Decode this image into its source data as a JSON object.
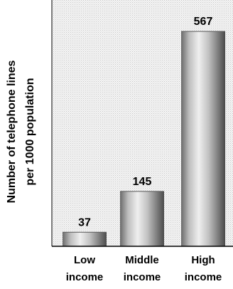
{
  "chart_data": {
    "type": "bar",
    "categories": [
      [
        "Low",
        "income"
      ],
      [
        "Middle",
        "income"
      ],
      [
        "High",
        "income"
      ]
    ],
    "values": [
      37,
      145,
      567
    ],
    "value_labels": [
      "37",
      "145",
      "567"
    ],
    "ylabel": [
      "Number of telephone lines",
      "per 1000 population"
    ],
    "ylim": [
      0,
      650
    ],
    "grid": false,
    "legend": "none",
    "colors": {
      "plot_background": "#ececec",
      "bar_light": "#e8e8e8",
      "bar_mid": "#a8a8a8",
      "bar_dark": "#4a4a4a",
      "axis": "#000000"
    }
  }
}
